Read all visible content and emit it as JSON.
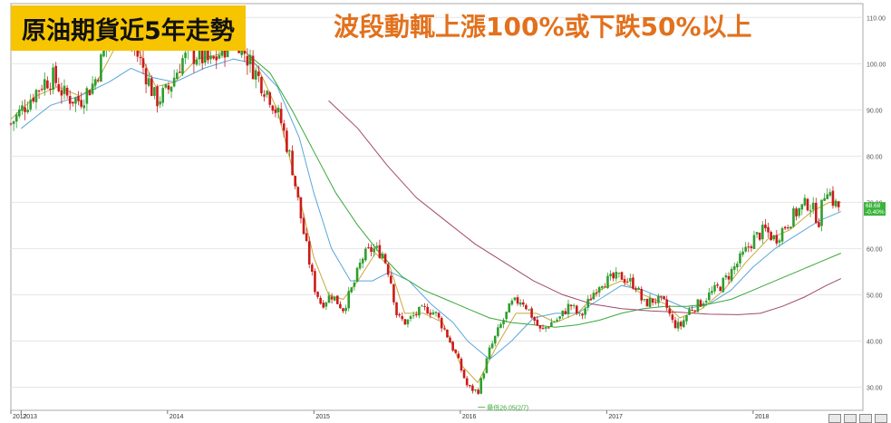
{
  "title": "原油期貨近5年走勢",
  "headline": "波段動輒上漲100%或下跌50%以上",
  "colors": {
    "title_bg": "#f6c500",
    "headline": "#e2711d",
    "candle_up": "#2e9e2e",
    "candle_down": "#cc1a1a",
    "ma_fast": "#c8a83a",
    "ma_mid": "#5aa6dc",
    "ma_slow": "#39a839",
    "ma_long": "#a04a6a",
    "last_price_bg": "#3cb43c"
  },
  "chart_data": {
    "type": "candlestick",
    "title": "",
    "xlabel": "",
    "ylabel": "",
    "ylim": [
      25,
      113
    ],
    "y_ticks": [
      "110.00",
      "100.00",
      "90.00",
      "80.00",
      "70.00",
      "60.00",
      "50.00",
      "40.00",
      "30.00"
    ],
    "x_ticks": [
      {
        "label": "2012",
        "year": 2012.93
      },
      {
        "label": "2013",
        "year": 2013.0
      },
      {
        "label": "2014",
        "year": 2014.0
      },
      {
        "label": "2015",
        "year": 2015.0
      },
      {
        "label": "2016",
        "year": 2016.0
      },
      {
        "label": "2017",
        "year": 2017.0
      },
      {
        "label": "2018",
        "year": 2018.0
      }
    ],
    "xlim": [
      2012.93,
      2018.75
    ],
    "grid": true,
    "price_path": [
      [
        2012.93,
        87
      ],
      [
        2013.05,
        92
      ],
      [
        2013.15,
        96
      ],
      [
        2013.22,
        97
      ],
      [
        2013.3,
        93
      ],
      [
        2013.4,
        92
      ],
      [
        2013.5,
        96
      ],
      [
        2013.6,
        106
      ],
      [
        2013.68,
        108
      ],
      [
        2013.75,
        105
      ],
      [
        2013.85,
        98
      ],
      [
        2013.92,
        92
      ],
      [
        2014.0,
        94
      ],
      [
        2014.1,
        101
      ],
      [
        2014.2,
        102
      ],
      [
        2014.3,
        100
      ],
      [
        2014.4,
        104
      ],
      [
        2014.47,
        106
      ],
      [
        2014.55,
        101
      ],
      [
        2014.62,
        97
      ],
      [
        2014.7,
        93
      ],
      [
        2014.78,
        87
      ],
      [
        2014.85,
        78
      ],
      [
        2014.92,
        65
      ],
      [
        2015.0,
        52
      ],
      [
        2015.05,
        48
      ],
      [
        2015.12,
        50
      ],
      [
        2015.2,
        47
      ],
      [
        2015.27,
        52
      ],
      [
        2015.33,
        58
      ],
      [
        2015.4,
        60
      ],
      [
        2015.47,
        59
      ],
      [
        2015.52,
        54
      ],
      [
        2015.57,
        45
      ],
      [
        2015.63,
        44
      ],
      [
        2015.7,
        46
      ],
      [
        2015.77,
        47
      ],
      [
        2015.83,
        46
      ],
      [
        2015.9,
        42
      ],
      [
        2015.97,
        37
      ],
      [
        2016.05,
        30
      ],
      [
        2016.12,
        29
      ],
      [
        2016.2,
        38
      ],
      [
        2016.27,
        43
      ],
      [
        2016.35,
        48
      ],
      [
        2016.42,
        49
      ],
      [
        2016.48,
        46
      ],
      [
        2016.55,
        42
      ],
      [
        2016.62,
        44
      ],
      [
        2016.68,
        45
      ],
      [
        2016.75,
        48
      ],
      [
        2016.82,
        45
      ],
      [
        2016.9,
        50
      ],
      [
        2016.96,
        53
      ],
      [
        2017.0,
        53
      ],
      [
        2017.1,
        54
      ],
      [
        2017.2,
        52
      ],
      [
        2017.25,
        48
      ],
      [
        2017.33,
        49
      ],
      [
        2017.4,
        48
      ],
      [
        2017.45,
        44
      ],
      [
        2017.5,
        43
      ],
      [
        2017.57,
        47
      ],
      [
        2017.63,
        48
      ],
      [
        2017.7,
        50
      ],
      [
        2017.78,
        52
      ],
      [
        2017.85,
        55
      ],
      [
        2017.92,
        58
      ],
      [
        2018.0,
        62
      ],
      [
        2018.08,
        64
      ],
      [
        2018.15,
        62
      ],
      [
        2018.22,
        65
      ],
      [
        2018.3,
        68
      ],
      [
        2018.38,
        70
      ],
      [
        2018.45,
        66
      ],
      [
        2018.5,
        74
      ],
      [
        2018.55,
        70
      ],
      [
        2018.6,
        68.5
      ]
    ],
    "series": [
      {
        "name": "",
        "color": "#c8a83a",
        "points": [
          [
            2012.93,
            88
          ],
          [
            2013.1,
            93
          ],
          [
            2013.25,
            95
          ],
          [
            2013.4,
            93
          ],
          [
            2013.5,
            95
          ],
          [
            2013.65,
            104
          ],
          [
            2013.8,
            103
          ],
          [
            2013.92,
            95
          ],
          [
            2014.05,
            96
          ],
          [
            2014.2,
            101
          ],
          [
            2014.35,
            102
          ],
          [
            2014.5,
            104
          ],
          [
            2014.62,
            99
          ],
          [
            2014.75,
            90
          ],
          [
            2014.88,
            74
          ],
          [
            2015.0,
            58
          ],
          [
            2015.1,
            50
          ],
          [
            2015.2,
            49
          ],
          [
            2015.3,
            53
          ],
          [
            2015.42,
            59
          ],
          [
            2015.52,
            56
          ],
          [
            2015.62,
            46
          ],
          [
            2015.75,
            46
          ],
          [
            2015.88,
            44
          ],
          [
            2016.0,
            35
          ],
          [
            2016.12,
            31
          ],
          [
            2016.25,
            39
          ],
          [
            2016.38,
            46
          ],
          [
            2016.52,
            46
          ],
          [
            2016.65,
            44
          ],
          [
            2016.8,
            46
          ],
          [
            2016.95,
            51
          ],
          [
            2017.1,
            53
          ],
          [
            2017.25,
            50
          ],
          [
            2017.4,
            48
          ],
          [
            2017.5,
            45
          ],
          [
            2017.65,
            47
          ],
          [
            2017.8,
            51
          ],
          [
            2017.95,
            57
          ],
          [
            2018.1,
            62
          ],
          [
            2018.25,
            64
          ],
          [
            2018.4,
            68
          ],
          [
            2018.52,
            70
          ],
          [
            2018.6,
            70
          ]
        ]
      },
      {
        "name": "",
        "color": "#5aa6dc",
        "points": [
          [
            2013.0,
            86
          ],
          [
            2013.2,
            91
          ],
          [
            2013.4,
            93
          ],
          [
            2013.6,
            96
          ],
          [
            2013.75,
            99
          ],
          [
            2013.9,
            97
          ],
          [
            2014.05,
            96
          ],
          [
            2014.25,
            99
          ],
          [
            2014.45,
            101
          ],
          [
            2014.6,
            100
          ],
          [
            2014.75,
            95
          ],
          [
            2014.9,
            84
          ],
          [
            2015.0,
            72
          ],
          [
            2015.12,
            60
          ],
          [
            2015.25,
            53
          ],
          [
            2015.4,
            53
          ],
          [
            2015.52,
            55
          ],
          [
            2015.65,
            53
          ],
          [
            2015.8,
            48
          ],
          [
            2015.95,
            44
          ],
          [
            2016.05,
            40
          ],
          [
            2016.2,
            36
          ],
          [
            2016.35,
            40
          ],
          [
            2016.5,
            45
          ],
          [
            2016.65,
            46
          ],
          [
            2016.8,
            46
          ],
          [
            2016.95,
            49
          ],
          [
            2017.1,
            52
          ],
          [
            2017.25,
            51
          ],
          [
            2017.4,
            49
          ],
          [
            2017.55,
            47
          ],
          [
            2017.7,
            48
          ],
          [
            2017.85,
            51
          ],
          [
            2018.0,
            56
          ],
          [
            2018.15,
            60
          ],
          [
            2018.3,
            63
          ],
          [
            2018.45,
            66
          ],
          [
            2018.6,
            68
          ]
        ]
      },
      {
        "name": "",
        "color": "#39a839",
        "points": [
          [
            2014.55,
            102
          ],
          [
            2014.7,
            98
          ],
          [
            2014.85,
            90
          ],
          [
            2015.0,
            81
          ],
          [
            2015.15,
            72
          ],
          [
            2015.3,
            65
          ],
          [
            2015.45,
            59
          ],
          [
            2015.6,
            54
          ],
          [
            2015.75,
            51
          ],
          [
            2015.9,
            49
          ],
          [
            2016.05,
            47
          ],
          [
            2016.2,
            45
          ],
          [
            2016.35,
            44
          ],
          [
            2016.5,
            43.5
          ],
          [
            2016.65,
            43
          ],
          [
            2016.8,
            43.5
          ],
          [
            2016.95,
            44.5
          ],
          [
            2017.1,
            46
          ],
          [
            2017.25,
            47
          ],
          [
            2017.4,
            47.5
          ],
          [
            2017.55,
            47.5
          ],
          [
            2017.7,
            48
          ],
          [
            2017.85,
            49
          ],
          [
            2018.0,
            51
          ],
          [
            2018.15,
            53
          ],
          [
            2018.3,
            55
          ],
          [
            2018.45,
            57
          ],
          [
            2018.6,
            59
          ]
        ]
      },
      {
        "name": "",
        "color": "#a04a6a",
        "points": [
          [
            2015.1,
            92
          ],
          [
            2015.3,
            86
          ],
          [
            2015.5,
            78
          ],
          [
            2015.7,
            71
          ],
          [
            2015.9,
            66
          ],
          [
            2016.1,
            61
          ],
          [
            2016.3,
            57
          ],
          [
            2016.5,
            53
          ],
          [
            2016.7,
            50
          ],
          [
            2016.9,
            48
          ],
          [
            2017.1,
            47
          ],
          [
            2017.3,
            46.5
          ],
          [
            2017.5,
            46.2
          ],
          [
            2017.7,
            45.8
          ],
          [
            2017.9,
            45.7
          ],
          [
            2018.05,
            46
          ],
          [
            2018.2,
            47.5
          ],
          [
            2018.35,
            49.5
          ],
          [
            2018.5,
            52
          ],
          [
            2018.6,
            53.5
          ]
        ]
      }
    ],
    "annotations": [
      {
        "text": "最低26.05(2/7)",
        "x": 2016.12,
        "y": 26.05
      }
    ],
    "last_price": {
      "value": "68.68",
      "change": "-0.40%"
    }
  }
}
